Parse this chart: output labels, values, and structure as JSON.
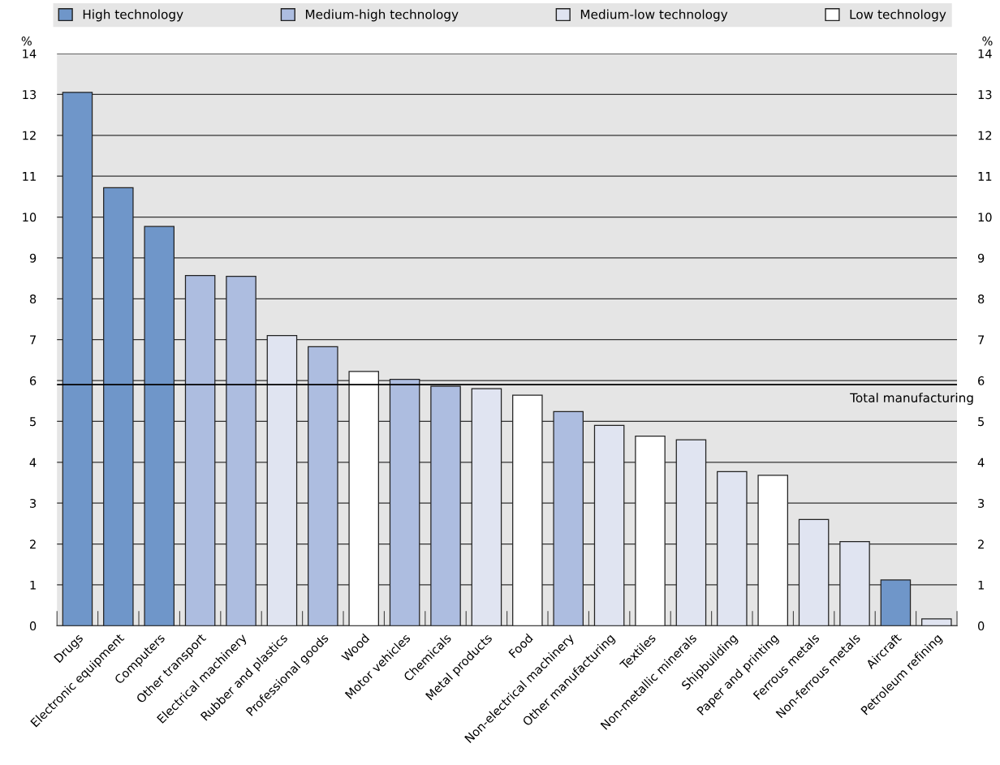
{
  "chart_data": {
    "type": "bar",
    "categories": [
      "Drugs",
      "Electronic equipment",
      "Computers",
      "Other transport",
      "Electrical machinery",
      "Rubber and plastics",
      "Professional goods",
      "Wood",
      "Motor vehicles",
      "Chemicals",
      "Metal products",
      "Food",
      "Non-electrical machinery",
      "Other manufacturing",
      "Textiles",
      "Non-metallic minerals",
      "Shipbuilding",
      "Paper and printing",
      "Ferrous metals",
      "Non-ferrous metals",
      "Aircraft",
      "Petroleum refining"
    ],
    "series": [
      {
        "name": "High technology",
        "color": "#6f96c9",
        "values": [
          13.05,
          10.72,
          9.77,
          null,
          null,
          null,
          null,
          null,
          null,
          null,
          null,
          null,
          null,
          null,
          null,
          null,
          null,
          null,
          null,
          null,
          1.12,
          null
        ]
      },
      {
        "name": "Medium-high technology",
        "color": "#adbde0",
        "values": [
          null,
          null,
          null,
          8.57,
          8.55,
          null,
          6.83,
          null,
          6.03,
          5.86,
          null,
          null,
          5.24,
          null,
          null,
          null,
          null,
          null,
          null,
          null,
          null,
          null
        ]
      },
      {
        "name": "Medium-low technology",
        "color": "#e0e4f1",
        "values": [
          null,
          null,
          null,
          null,
          null,
          7.1,
          null,
          null,
          null,
          null,
          5.8,
          null,
          null,
          4.9,
          null,
          4.55,
          3.77,
          null,
          2.6,
          2.06,
          null,
          0.17
        ]
      },
      {
        "name": "Low technology",
        "color": "#ffffff",
        "values": [
          null,
          null,
          null,
          null,
          null,
          null,
          null,
          6.22,
          null,
          null,
          null,
          5.64,
          null,
          null,
          4.64,
          null,
          null,
          3.68,
          null,
          null,
          null,
          null
        ]
      }
    ],
    "ylabel": "%",
    "y2label": "%",
    "ylim": [
      0,
      14
    ],
    "yticks": [
      0,
      1,
      2,
      3,
      4,
      5,
      6,
      7,
      8,
      9,
      10,
      11,
      12,
      13,
      14
    ],
    "y2lim": [
      0,
      14
    ],
    "y2ticks": [
      0,
      1,
      2,
      3,
      4,
      5,
      6,
      7,
      8,
      9,
      10,
      11,
      12,
      13,
      14
    ],
    "ref_lines": [
      {
        "axis": "y",
        "value": 5.9,
        "label": "Total manufacturing",
        "color": "#000000"
      }
    ],
    "grid": "y",
    "legend": "top"
  }
}
